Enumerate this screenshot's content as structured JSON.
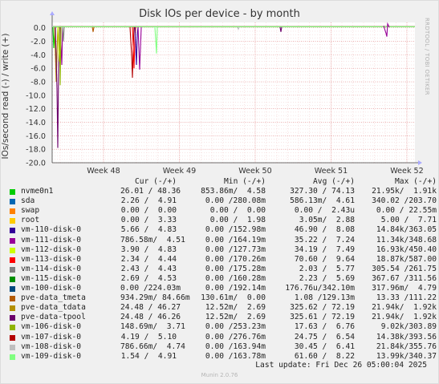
{
  "title": "Disk IOs per device - by month",
  "side_label": "RRDTOOL / TOBI OETIKER",
  "footer": "Munin 2.0.76",
  "last_update": "Last update: Fri Dec 26 05:00:04 2025",
  "legend_headers": {
    "cur": "Cur (-/+)",
    "min": "Min (-/+)",
    "avg": "Avg (-/+)",
    "max": "Max (-/+)"
  },
  "chart_data": {
    "type": "line",
    "ylabel": "IOs/second read (-) / write (+)",
    "ylim": [
      -20.0,
      0.8
    ],
    "y_ticks": [
      "0.0",
      "-2.0",
      "-4.0",
      "-6.0",
      "-8.0",
      "-10.0",
      "-12.0",
      "-14.0",
      "-16.0",
      "-18.0",
      "-20.0"
    ],
    "x_ticks": [
      "Week 48",
      "Week 49",
      "Week 50",
      "Week 51",
      "Week 52"
    ],
    "grid": true,
    "series": [
      {
        "name": "nvme0n1",
        "color": "#00cc00",
        "cur": "26.01 / 48.36",
        "min": "853.86m/  4.58",
        "avg": "327.30 / 74.13",
        "max": "21.95k/  1.91k"
      },
      {
        "name": "sda",
        "color": "#0066b3",
        "cur": "2.26 /  4.91",
        "min": "0.00 /280.08m",
        "avg": "586.13m/  4.61",
        "max": "340.02 /203.70"
      },
      {
        "name": "swap",
        "color": "#ff8000",
        "cur": "0.00 /  0.00",
        "min": "0.00 /  0.00",
        "avg": "0.00 /  2.43u",
        "max": "0.00 / 22.55m"
      },
      {
        "name": "root",
        "color": "#ffcc00",
        "cur": "0.00 /  3.33",
        "min": "0.00 /  1.98",
        "avg": "3.05m/  2.88",
        "max": "5.00 /  7.71"
      },
      {
        "name": "vm-110-disk-0",
        "color": "#330099",
        "cur": "5.66 /  4.83",
        "min": "0.00 /152.98m",
        "avg": "46.90 /  8.08",
        "max": "14.84k/363.05"
      },
      {
        "name": "vm-111-disk-0",
        "color": "#990099",
        "cur": "786.58m/  4.51",
        "min": "0.00 /164.19m",
        "avg": "35.22 /  7.24",
        "max": "11.34k/348.68"
      },
      {
        "name": "vm-112-disk-0",
        "color": "#ccff00",
        "cur": "3.90 /  4.83",
        "min": "0.00 /127.73m",
        "avg": "34.19 /  7.49",
        "max": "16.93k/450.40"
      },
      {
        "name": "vm-113-disk-0",
        "color": "#ff0000",
        "cur": "2.34 /  4.44",
        "min": "0.00 /170.26m",
        "avg": "70.60 /  9.64",
        "max": "18.87k/587.00"
      },
      {
        "name": "vm-114-disk-0",
        "color": "#808080",
        "cur": "2.43 /  4.43",
        "min": "0.00 /175.28m",
        "avg": "2.03 /  5.77",
        "max": "305.54 /261.75"
      },
      {
        "name": "vm-115-disk-0",
        "color": "#008f00",
        "cur": "2.69 /  4.53",
        "min": "0.00 /160.28m",
        "avg": "2.23 /  5.69",
        "max": "367.67 /311.56"
      },
      {
        "name": "vm-100-disk-0",
        "color": "#00487d",
        "cur": "0.00 /224.03m",
        "min": "0.00 /192.14m",
        "avg": "176.76u/342.10m",
        "max": "317.96m/  4.79"
      },
      {
        "name": "pve-data_tmeta",
        "color": "#b35a00",
        "cur": "934.29m/ 84.66m",
        "min": "130.61m/  0.00",
        "avg": "1.08 /129.13m",
        "max": "13.33 /111.22"
      },
      {
        "name": "pve-data_tdata",
        "color": "#b38f00",
        "cur": "24.48 / 46.27",
        "min": "12.52m/  2.69",
        "avg": "325.62 / 72.19",
        "max": "21.94k/  1.92k"
      },
      {
        "name": "pve-data-tpool",
        "color": "#6b006b",
        "cur": "24.48 / 46.26",
        "min": "12.52m/  2.69",
        "avg": "325.61 / 72.19",
        "max": "21.94k/  1.92k"
      },
      {
        "name": "vm-106-disk-0",
        "color": "#8fb300",
        "cur": "148.69m/  3.71",
        "min": "0.00 /253.23m",
        "avg": "17.63 /  6.76",
        "max": "9.02k/303.89"
      },
      {
        "name": "vm-107-disk-0",
        "color": "#b30000",
        "cur": "4.19 /  5.10",
        "min": "0.00 /276.76m",
        "avg": "24.75 /  6.54",
        "max": "14.38k/393.56"
      },
      {
        "name": "vm-108-disk-0",
        "color": "#bebebe",
        "cur": "786.66m/  4.74",
        "min": "0.00 /163.94m",
        "avg": "30.45 /  6.41",
        "max": "21.84k/355.76"
      },
      {
        "name": "vm-109-disk-0",
        "color": "#80ff80",
        "cur": "1.54 /  4.91",
        "min": "0.00 /163.78m",
        "avg": "61.60 /  8.22",
        "max": "13.99k/340.37"
      }
    ]
  }
}
